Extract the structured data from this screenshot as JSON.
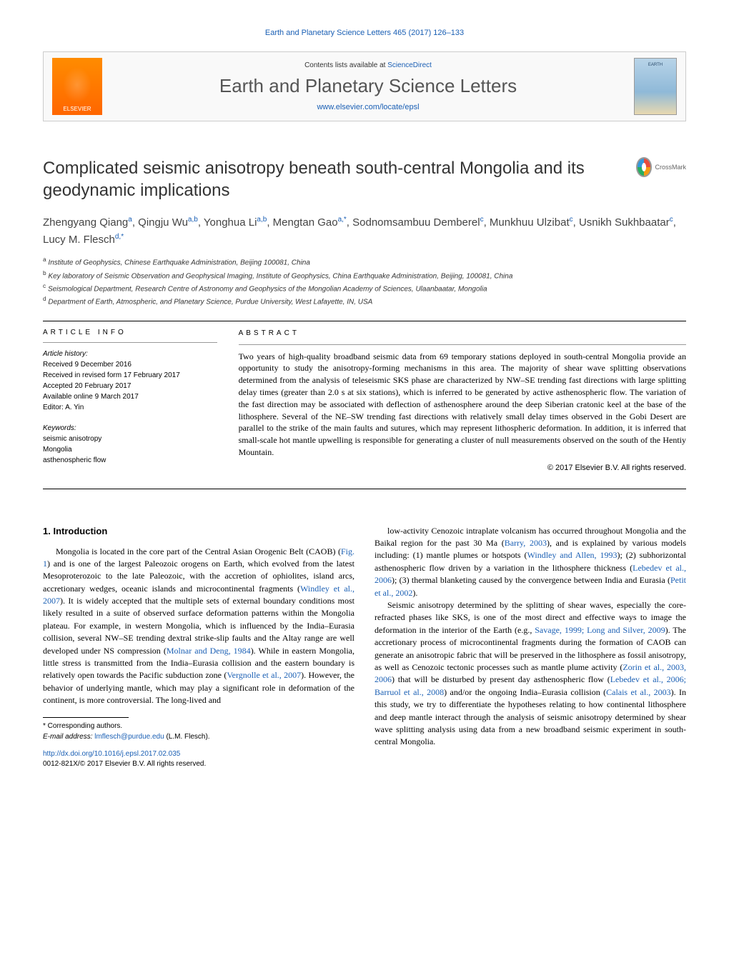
{
  "journal": {
    "citation_line": "Earth and Planetary Science Letters 465 (2017) 126–133",
    "contents_prefix": "Contents lists available at ",
    "contents_link": "ScienceDirect",
    "name": "Earth and Planetary Science Letters",
    "homepage": "www.elsevier.com/locate/epsl",
    "publisher_logo_text": "ELSEVIER",
    "cover_text": "EARTH"
  },
  "crossmark": {
    "label": "CrossMark"
  },
  "article": {
    "title": "Complicated seismic anisotropy beneath south-central Mongolia and its geodynamic implications",
    "authors_html": "Zhengyang Qiang<sup>a</sup>, Qingju Wu<sup>a,b</sup>, Yonghua Li<sup>a,b</sup>, Mengtan Gao<sup>a,*</sup>, Sodnomsambuu Demberel<sup>c</sup>, Munkhuu Ulzibat<sup>c</sup>, Usnikh Sukhbaatar<sup>c</sup>, Lucy M. Flesch<sup>d,*</sup>",
    "affiliations": [
      {
        "sup": "a",
        "text": "Institute of Geophysics, Chinese Earthquake Administration, Beijing 100081, China"
      },
      {
        "sup": "b",
        "text": "Key laboratory of Seismic Observation and Geophysical Imaging, Institute of Geophysics, China Earthquake Administration, Beijing, 100081, China"
      },
      {
        "sup": "c",
        "text": "Seismological Department, Research Centre of Astronomy and Geophysics of the Mongolian Academy of Sciences, Ulaanbaatar, Mongolia"
      },
      {
        "sup": "d",
        "text": "Department of Earth, Atmospheric, and Planetary Science, Purdue University, West Lafayette, IN, USA"
      }
    ]
  },
  "info": {
    "label": "ARTICLE INFO",
    "history_hdr": "Article history:",
    "history": [
      "Received 9 December 2016",
      "Received in revised form 17 February 2017",
      "Accepted 20 February 2017",
      "Available online 9 March 2017",
      "Editor: A. Yin"
    ],
    "keywords_hdr": "Keywords:",
    "keywords": [
      "seismic anisotropy",
      "Mongolia",
      "asthenospheric flow"
    ]
  },
  "abstract": {
    "label": "ABSTRACT",
    "text": "Two years of high-quality broadband seismic data from 69 temporary stations deployed in south-central Mongolia provide an opportunity to study the anisotropy-forming mechanisms in this area. The majority of shear wave splitting observations determined from the analysis of teleseismic SKS phase are characterized by NW–SE trending fast directions with large splitting delay times (greater than 2.0 s at six stations), which is inferred to be generated by active asthenospheric flow. The variation of the fast direction may be associated with deflection of asthenosphere around the deep Siberian cratonic keel at the base of the lithosphere. Several of the NE–SW trending fast directions with relatively small delay times observed in the Gobi Desert are parallel to the strike of the main faults and sutures, which may represent lithospheric deformation. In addition, it is inferred that small-scale hot mantle upwelling is responsible for generating a cluster of null measurements observed on the south of the Hentiy Mountain.",
    "copyright": "© 2017 Elsevier B.V. All rights reserved."
  },
  "body": {
    "section1_hdr": "1. Introduction",
    "p1": "Mongolia is located in the core part of the Central Asian Orogenic Belt (CAOB) (<span class=\"cite\">Fig. 1</span>) and is one of the largest Paleozoic orogens on Earth, which evolved from the latest Mesoproterozoic to the late Paleozoic, with the accretion of ophiolites, island arcs, accretionary wedges, oceanic islands and microcontinental fragments (<span class=\"cite\">Windley et al., 2007</span>). It is widely accepted that the multiple sets of external boundary conditions most likely resulted in a suite of observed surface deformation patterns within the Mongolia plateau. For example, in western Mongolia, which is influenced by the India–Eurasia collision, several NW–SE trending dextral strike-slip faults and the Altay range are well developed under NS compression (<span class=\"cite\">Molnar and Deng, 1984</span>). While in eastern Mongolia, little stress is transmitted from the India–Eurasia collision and the eastern boundary is relatively open towards the Pacific subduction zone (<span class=\"cite\">Vergnolle et al., 2007</span>). However, the behavior of underlying mantle, which may play a significant role in deformation of the continent, is more controversial. The long-lived and",
    "p2": "low-activity Cenozoic intraplate volcanism has occurred throughout Mongolia and the Baikal region for the past 30 Ma (<span class=\"cite\">Barry, 2003</span>), and is explained by various models including: (1) mantle plumes or hotspots (<span class=\"cite\">Windley and Allen, 1993</span>); (2) subhorizontal asthenospheric flow driven by a variation in the lithosphere thickness (<span class=\"cite\">Lebedev et al., 2006</span>); (3) thermal blanketing caused by the convergence between India and Eurasia (<span class=\"cite\">Petit et al., 2002</span>).",
    "p3": "Seismic anisotropy determined by the splitting of shear waves, especially the core-refracted phases like SKS, is one of the most direct and effective ways to image the deformation in the interior of the Earth (e.g., <span class=\"cite\">Savage, 1999; Long and Silver, 2009</span>). The accretionary process of microcontinental fragments during the formation of CAOB can generate an anisotropic fabric that will be preserved in the lithosphere as fossil anisotropy, as well as Cenozoic tectonic processes such as mantle plume activity (<span class=\"cite\">Zorin et al., 2003, 2006</span>) that will be disturbed by present day asthenospheric flow (<span class=\"cite\">Lebedev et al., 2006; Barruol et al., 2008</span>) and/or the ongoing India–Eurasia collision (<span class=\"cite\">Calais et al., 2003</span>). In this study, we try to differentiate the hypotheses relating to how continental lithosphere and deep mantle interact through the analysis of seismic anisotropy determined by shear wave splitting analysis using data from a new broadband seismic experiment in south-central Mongolia."
  },
  "footer": {
    "corresponding": "* Corresponding authors.",
    "email_label": "E-mail address: ",
    "email": "lmflesch@purdue.edu",
    "email_person": " (L.M. Flesch).",
    "doi": "http://dx.doi.org/10.1016/j.epsl.2017.02.035",
    "issn_line": "0012-821X/© 2017 Elsevier B.V. All rights reserved."
  },
  "colors": {
    "link": "#1a5fb4",
    "text": "#000000",
    "logo_bg": "#ff6600"
  }
}
